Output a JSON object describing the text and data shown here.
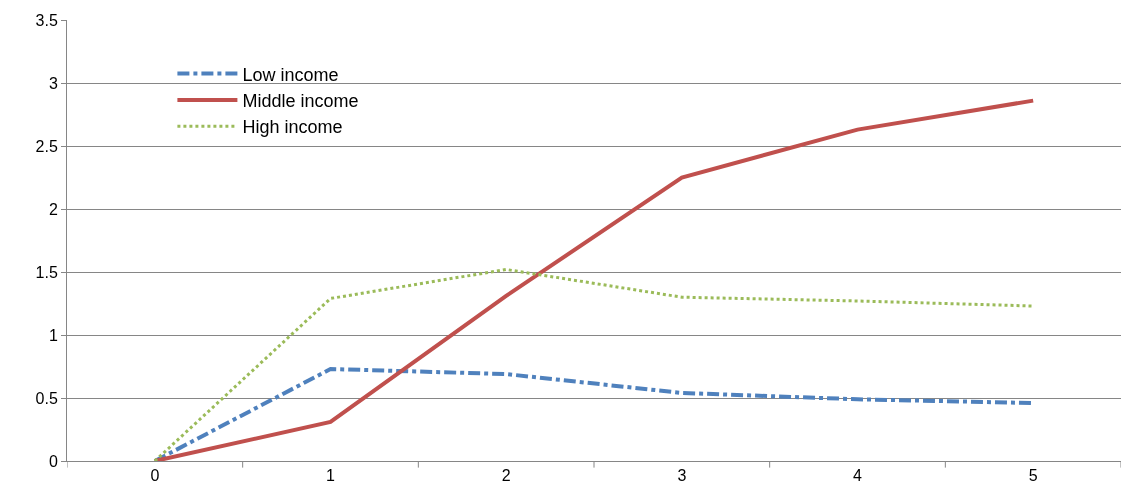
{
  "chart_data": {
    "type": "line",
    "categories": [
      "0",
      "1",
      "2",
      "3",
      "4",
      "5"
    ],
    "series": [
      {
        "name": "Low income",
        "color": "#4f81bd",
        "line_style": "dashdot",
        "values": [
          0,
          0.73,
          0.69,
          0.54,
          0.49,
          0.46
        ]
      },
      {
        "name": "Middle income",
        "color": "#c0504d",
        "line_style": "solid",
        "values": [
          0,
          0.31,
          1.31,
          2.25,
          2.63,
          2.86
        ]
      },
      {
        "name": "High income",
        "color": "#9bbb59",
        "line_style": "dotted",
        "values": [
          0,
          1.29,
          1.52,
          1.3,
          1.27,
          1.23
        ]
      }
    ],
    "ylim": [
      0,
      3.5
    ],
    "yticks": [
      0,
      0.5,
      1,
      1.5,
      2,
      2.5,
      3,
      3.5
    ],
    "grid": "y",
    "legend": "top left",
    "marker": "none"
  }
}
